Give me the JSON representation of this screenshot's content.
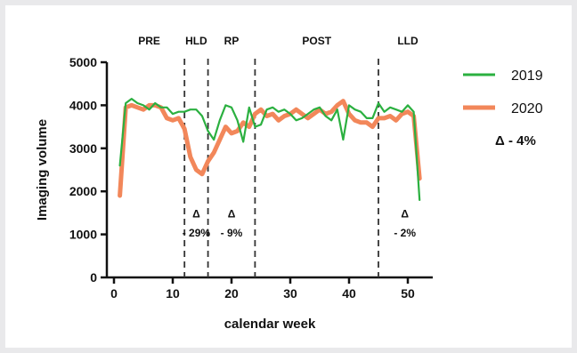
{
  "chart_data": {
    "type": "line",
    "xlabel": "calendar week",
    "ylabel": "Imaging volume",
    "xlim": [
      0,
      54
    ],
    "ylim": [
      0,
      5000
    ],
    "x_ticks": [
      "0",
      "10",
      "20",
      "30",
      "40",
      "50"
    ],
    "x_tick_values": [
      0,
      10,
      20,
      30,
      40,
      50
    ],
    "y_ticks": [
      "0",
      "1000",
      "2000",
      "3000",
      "4000",
      "5000"
    ],
    "y_tick_values": [
      0,
      1000,
      2000,
      3000,
      4000,
      5000
    ],
    "colors": {
      "2019": "#2bb040",
      "2020": "#f2875a"
    },
    "series": [
      {
        "name": "2019",
        "color": "#2bb040",
        "x": [
          1,
          2,
          3,
          4,
          5,
          6,
          7,
          8,
          9,
          10,
          11,
          12,
          13,
          14,
          15,
          16,
          17,
          18,
          19,
          20,
          21,
          22,
          23,
          24,
          25,
          26,
          27,
          28,
          29,
          30,
          31,
          32,
          33,
          34,
          35,
          36,
          37,
          38,
          39,
          40,
          41,
          42,
          43,
          44,
          45,
          46,
          47,
          48,
          49,
          50,
          51,
          52
        ],
        "values": [
          2600,
          4050,
          4150,
          4050,
          4000,
          3900,
          4050,
          3950,
          3950,
          3800,
          3850,
          3850,
          3900,
          3900,
          3750,
          3400,
          3200,
          3650,
          4000,
          3950,
          3650,
          3150,
          3950,
          3500,
          3550,
          3900,
          3950,
          3850,
          3900,
          3800,
          3650,
          3700,
          3800,
          3900,
          3950,
          3750,
          3650,
          3900,
          3200,
          4000,
          3900,
          3850,
          3700,
          3700,
          4050,
          3850,
          3950,
          3900,
          3850,
          4000,
          3850,
          1800
        ]
      },
      {
        "name": "2020",
        "color": "#f2875a",
        "x": [
          1,
          2,
          3,
          4,
          5,
          6,
          7,
          8,
          9,
          10,
          11,
          12,
          13,
          14,
          15,
          16,
          17,
          18,
          19,
          20,
          21,
          22,
          23,
          24,
          25,
          26,
          27,
          28,
          29,
          30,
          31,
          32,
          33,
          34,
          35,
          36,
          37,
          38,
          39,
          40,
          41,
          42,
          43,
          44,
          45,
          46,
          47,
          48,
          49,
          50,
          51,
          52
        ],
        "values": [
          1900,
          3950,
          4000,
          3950,
          3900,
          4000,
          4000,
          3950,
          3700,
          3650,
          3700,
          3450,
          2800,
          2500,
          2400,
          2700,
          2900,
          3200,
          3500,
          3350,
          3400,
          3600,
          3500,
          3800,
          3900,
          3750,
          3800,
          3650,
          3750,
          3800,
          3900,
          3800,
          3700,
          3800,
          3900,
          3800,
          3850,
          4000,
          4100,
          3800,
          3650,
          3600,
          3600,
          3500,
          3700,
          3700,
          3750,
          3650,
          3800,
          3850,
          3750,
          2300
        ]
      }
    ],
    "phase_lines": [
      12,
      16,
      24,
      45
    ],
    "phases": [
      {
        "label": "PRE",
        "x": 6
      },
      {
        "label": "HLD",
        "x": 14
      },
      {
        "label": "RP",
        "x": 20
      },
      {
        "label": "POST",
        "x": 34.5
      },
      {
        "label": "LLD",
        "x": 50
      }
    ],
    "deltas": [
      {
        "symbol": "Δ",
        "text": "- 29%",
        "x": 14,
        "y_symbol": 1500,
        "y_text": 1050
      },
      {
        "symbol": "Δ",
        "text": "- 9%",
        "x": 20,
        "y_symbol": 1500,
        "y_text": 1050
      },
      {
        "symbol": "Δ",
        "text": "- 2%",
        "x": 49.5,
        "y_symbol": 1500,
        "y_text": 1050
      }
    ],
    "legend": {
      "position": "right",
      "entries": [
        "2019",
        "2020"
      ],
      "overall_delta": "Δ - 4%"
    }
  }
}
